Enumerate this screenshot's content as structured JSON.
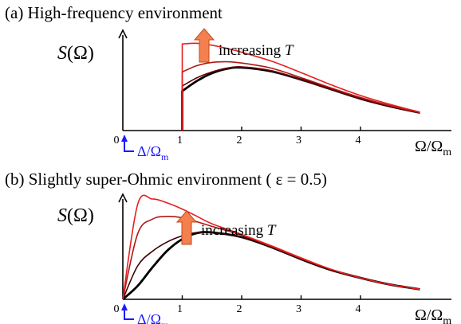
{
  "chart_data": [
    {
      "panel": "(a)",
      "title": "(a) High-frequency environment",
      "type": "line",
      "ylabel": "S(Ω)",
      "xlabel": "Ω/Ωm",
      "xlim": [
        0,
        5.05
      ],
      "ylim": [
        0,
        1.45
      ],
      "xticks": [
        "0",
        "1",
        "2",
        "3",
        "4"
      ],
      "gap_label": "Δ/Ωm",
      "annotation": "increasing T",
      "colors": {
        "axis": "#000000",
        "t_low": "#000000",
        "t_mid": "#6b0000",
        "t_high": "#b01818",
        "t_max": "#e81e1e",
        "gap": "#1a1aff",
        "arrow": "#f4804f"
      },
      "series": [
        {
          "color": "#000000",
          "x": [
            1.0,
            1.0,
            1.25,
            1.5,
            1.75,
            2.0,
            2.5,
            3.0,
            3.5,
            4.0,
            4.5,
            5.0
          ],
          "y": [
            0.0,
            0.62,
            0.78,
            0.9,
            0.97,
            0.99,
            0.93,
            0.8,
            0.65,
            0.5,
            0.38,
            0.28
          ]
        },
        {
          "color": "#6b0000",
          "x": [
            1.0,
            1.0,
            1.25,
            1.5,
            1.75,
            2.0,
            2.5,
            3.0,
            3.5,
            4.0,
            4.5,
            5.0
          ],
          "y": [
            0.0,
            0.7,
            0.83,
            0.92,
            0.98,
            1.0,
            0.94,
            0.8,
            0.65,
            0.5,
            0.38,
            0.28
          ]
        },
        {
          "color": "#b01818",
          "x": [
            1.0,
            1.0,
            1.25,
            1.5,
            1.75,
            2.0,
            2.5,
            3.0,
            3.5,
            4.0,
            4.5,
            5.0
          ],
          "y": [
            0.0,
            0.92,
            1.02,
            1.07,
            1.08,
            1.06,
            0.98,
            0.83,
            0.67,
            0.52,
            0.39,
            0.28
          ]
        },
        {
          "color": "#e81e1e",
          "x": [
            1.0,
            1.0,
            1.25,
            1.5,
            1.75,
            2.0,
            2.5,
            3.0,
            3.5,
            4.0,
            4.5,
            5.0
          ],
          "y": [
            0.0,
            1.36,
            1.37,
            1.34,
            1.29,
            1.23,
            1.09,
            0.91,
            0.72,
            0.55,
            0.41,
            0.29
          ]
        }
      ]
    },
    {
      "panel": "(b)",
      "title": "(b) Slightly super-Ohmic environment ( ε = 0.5)",
      "type": "line",
      "ylabel": "S(Ω)",
      "xlabel": "Ω/Ωm",
      "xlim": [
        0,
        5.05
      ],
      "ylim": [
        0,
        1.6
      ],
      "xticks": [
        "0",
        "1",
        "2",
        "3",
        "4"
      ],
      "gap_label": "Δ/Ωm",
      "annotation": "increasing T",
      "colors": {
        "axis": "#000000",
        "t_low": "#000000",
        "t_mid": "#3a0000",
        "t_high": "#b01818",
        "t_max": "#e81e1e",
        "gap": "#1a1aff",
        "arrow": "#f4804f"
      },
      "series": [
        {
          "color": "#000000",
          "x": [
            0.0,
            0.25,
            0.5,
            0.75,
            1.0,
            1.25,
            1.5,
            2.0,
            2.5,
            3.0,
            3.5,
            4.0,
            4.5,
            5.0
          ],
          "y": [
            0.0,
            0.2,
            0.48,
            0.73,
            0.9,
            0.99,
            1.0,
            0.93,
            0.78,
            0.6,
            0.44,
            0.32,
            0.22,
            0.15
          ]
        },
        {
          "color": "#3a0000",
          "x": [
            0.0,
            0.25,
            0.5,
            0.75,
            1.0,
            1.25,
            1.5,
            2.0,
            2.5,
            3.0,
            3.5,
            4.0,
            4.5,
            5.0
          ],
          "y": [
            0.0,
            0.5,
            0.72,
            0.86,
            0.95,
            1.0,
            1.0,
            0.93,
            0.78,
            0.6,
            0.44,
            0.32,
            0.22,
            0.15
          ]
        },
        {
          "color": "#b01818",
          "x": [
            0.0,
            0.25,
            0.5,
            0.75,
            1.0,
            1.25,
            1.5,
            2.0,
            2.5,
            3.0,
            3.5,
            4.0,
            4.5,
            5.0
          ],
          "y": [
            0.0,
            0.98,
            1.2,
            1.24,
            1.22,
            1.16,
            1.09,
            0.96,
            0.79,
            0.61,
            0.45,
            0.32,
            0.22,
            0.15
          ]
        },
        {
          "color": "#e81e1e",
          "x": [
            0.0,
            0.25,
            0.5,
            0.75,
            1.0,
            1.25,
            1.5,
            2.0,
            2.5,
            3.0,
            3.5,
            4.0,
            4.5,
            5.0
          ],
          "y": [
            0.0,
            1.42,
            1.5,
            1.44,
            1.35,
            1.24,
            1.13,
            0.97,
            0.8,
            0.62,
            0.45,
            0.32,
            0.22,
            0.15
          ]
        }
      ]
    }
  ]
}
